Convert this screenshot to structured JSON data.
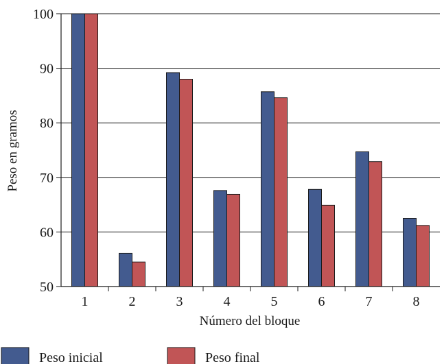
{
  "chart_data": {
    "type": "bar",
    "categories": [
      "1",
      "2",
      "3",
      "4",
      "5",
      "6",
      "7",
      "8"
    ],
    "series": [
      {
        "name": "Peso inicial",
        "values": [
          100,
          56.1,
          89.2,
          67.6,
          85.7,
          67.8,
          74.7,
          62.5
        ]
      },
      {
        "name": "Peso final",
        "values": [
          100,
          54.5,
          88.0,
          66.9,
          84.6,
          64.9,
          72.9,
          61.2
        ]
      }
    ],
    "xlabel": "Número del bloque",
    "ylabel": "Peso en gramos",
    "ylim": [
      50,
      100
    ],
    "yticks": [
      50,
      60,
      70,
      80,
      90,
      100
    ],
    "grid": "horizontal",
    "legend": "bottom",
    "colors": {
      "series": [
        "#435b8f",
        "#c15556"
      ],
      "outline": "#1a1a1a",
      "grid": "#1a1a1a"
    }
  }
}
